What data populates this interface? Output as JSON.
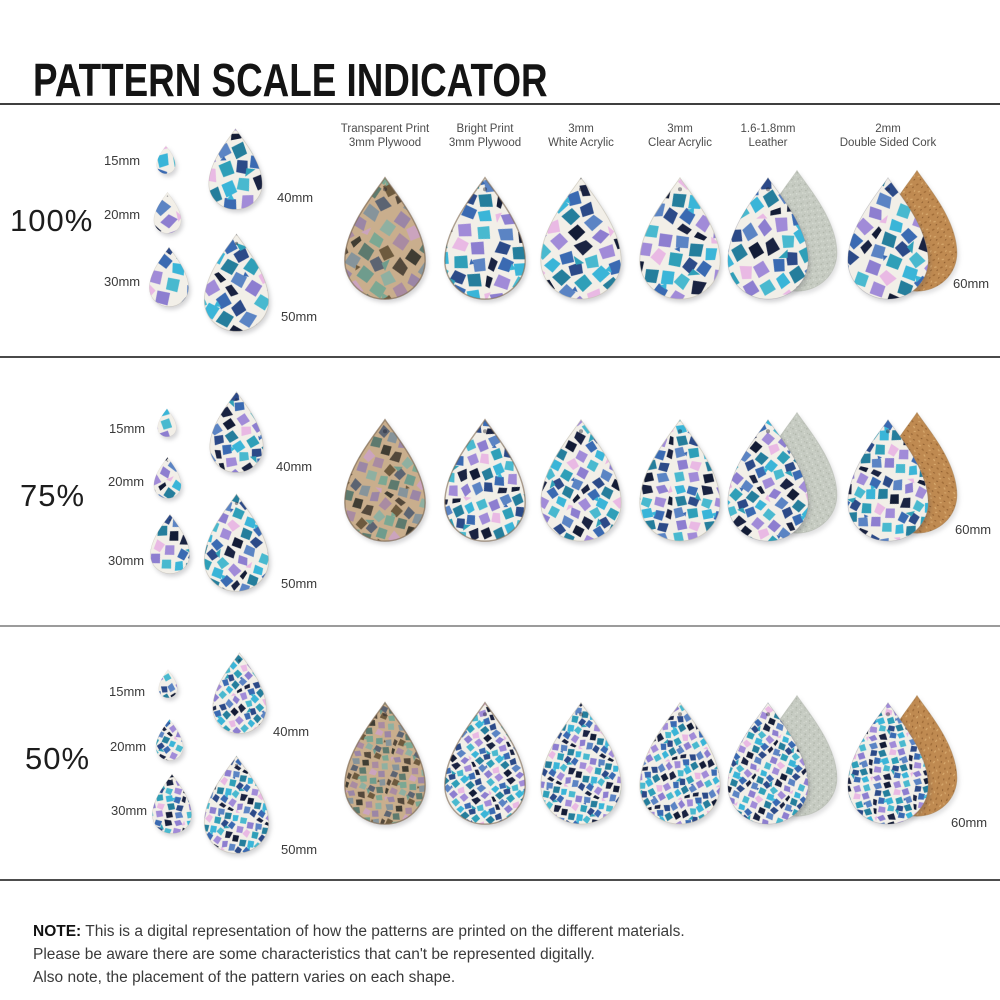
{
  "title": "PATTERN SCALE INDICATOR",
  "columns": [
    {
      "id": "transparent-plywood",
      "label_line1": "Transparent Print",
      "label_line2": "3mm Plywood",
      "scheme": "muted"
    },
    {
      "id": "bright-plywood",
      "label_line1": "Bright Print",
      "label_line2": "3mm Plywood",
      "scheme": "bright"
    },
    {
      "id": "white-acrylic",
      "label_line1": "3mm",
      "label_line2": "White Acrylic",
      "scheme": "bright"
    },
    {
      "id": "clear-acrylic",
      "label_line1": "3mm",
      "label_line2": "Clear Acrylic",
      "scheme": "bright"
    },
    {
      "id": "leather",
      "label_line1": "1.6-1.8mm",
      "label_line2": "Leather",
      "scheme": "bright",
      "backing": "leather"
    },
    {
      "id": "cork",
      "label_line1": "2mm",
      "label_line2": "Double Sided Cork",
      "scheme": "bright",
      "backing": "cork"
    }
  ],
  "rows": [
    {
      "scale_label": "100%",
      "pattern_scale": 1.0,
      "sample_size_label": "60mm"
    },
    {
      "scale_label": "75%",
      "pattern_scale": 0.75,
      "sample_size_label": "60mm"
    },
    {
      "scale_label": "50%",
      "pattern_scale": 0.5,
      "sample_size_label": "60mm"
    }
  ],
  "size_labels": [
    "15mm",
    "20mm",
    "30mm",
    "40mm",
    "50mm"
  ],
  "note": {
    "label": "NOTE:",
    "lines": [
      "This is a digital representation of how the patterns are printed on the different materials.",
      "Please be aware there are some characteristics that can't be represented digitally.",
      "Also note, the placement of the pattern varies on each shape."
    ]
  },
  "palette": {
    "bright_bg": "#f2efe8",
    "bright_chips": [
      "#3ab5d8",
      "#3a6ab2",
      "#1a2342",
      "#8d7ed0",
      "#e9b9e4",
      "#257e9c",
      "#2c4a88",
      "#49b9cf",
      "#a18bd8",
      "#131c36",
      "#5b84c4",
      "#2f9fb8"
    ],
    "muted_bg": "#c9ae8d",
    "muted_chips": [
      "#7ba893",
      "#6d5a3e",
      "#53483b",
      "#9b86a6",
      "#cba4be",
      "#5d7a6e",
      "#5c6472",
      "#8fb0a1",
      "#a98ba2",
      "#403d33",
      "#86949b",
      "#6f9c8d"
    ],
    "leather_base": "#c6cbc2",
    "leather_light": "#dadfd5",
    "leather_dark": "#aeb4a8",
    "cork_base": "#bf8a51",
    "cork_dark": "#a06c38",
    "cork_dark2": "#8a5a2d",
    "cork_light": "#d7a96e",
    "divider_color": "#4d4d4d",
    "divider_color_light": "#9b9b9b"
  }
}
